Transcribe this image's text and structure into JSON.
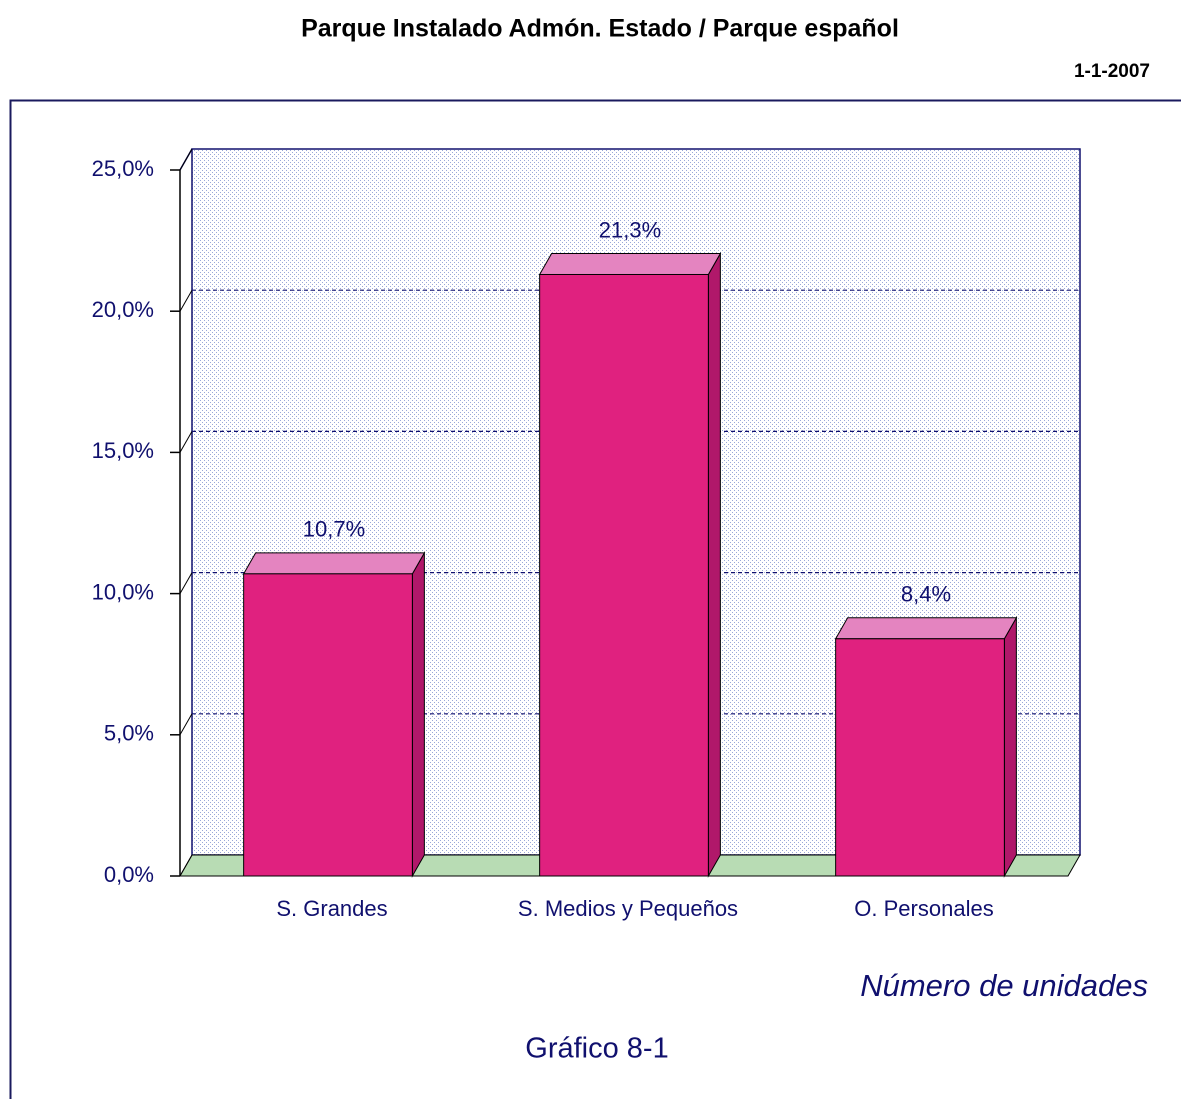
{
  "chart_data": {
    "type": "bar",
    "title": "Parque Instalado Admón. Estado / Parque español",
    "subtitle": "1-1-2007",
    "categories": [
      "S. Grandes",
      "S. Medios y Pequeños",
      "O. Personales"
    ],
    "values": [
      10.7,
      21.3,
      8.4
    ],
    "value_labels": [
      "10,7%",
      "21,3%",
      "8,4%"
    ],
    "color": "#e0217f",
    "ylim": [
      0,
      25
    ],
    "yticks": [
      {
        "value": 0,
        "label": "0,0%"
      },
      {
        "value": 5,
        "label": "5,0%"
      },
      {
        "value": 10,
        "label": "10,0%"
      },
      {
        "value": 15,
        "label": "15,0%"
      },
      {
        "value": 20,
        "label": "20,0%"
      },
      {
        "value": 25,
        "label": "25,0%"
      }
    ],
    "grid": true,
    "x_label": "Número de unidades",
    "annotation": "Gráfico 8-1"
  }
}
